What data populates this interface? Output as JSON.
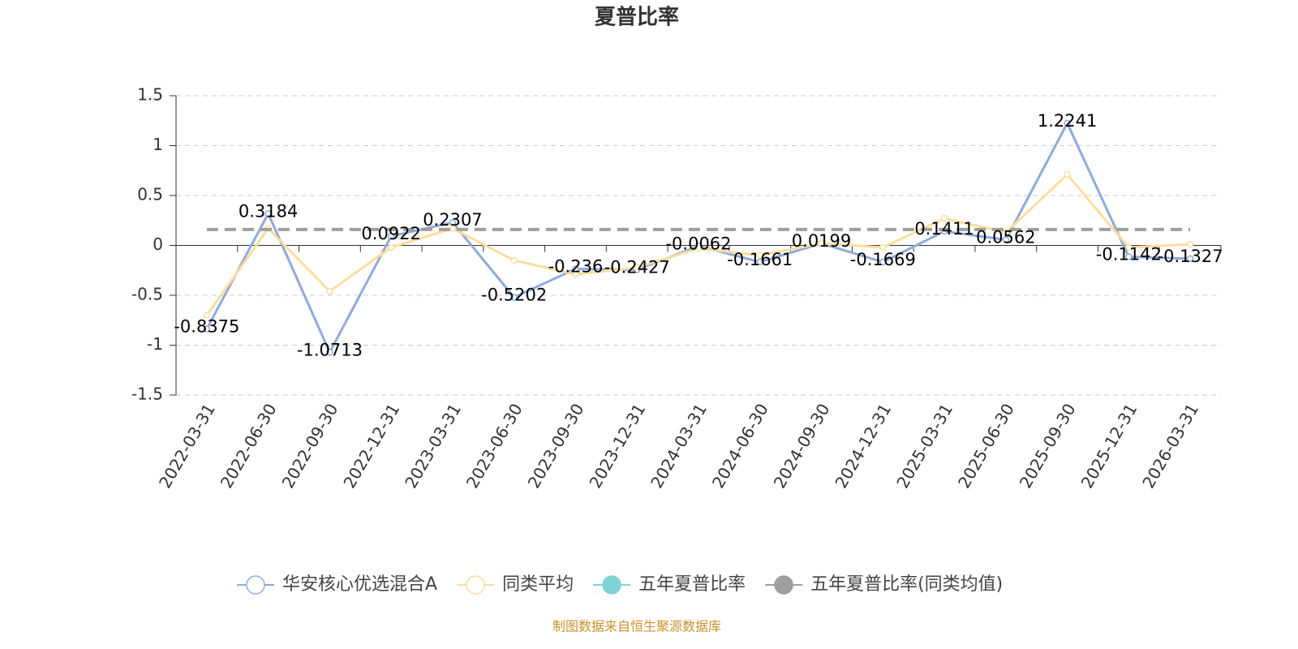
{
  "chart_data": {
    "type": "line",
    "title": "夏普比率",
    "source": "制图数据来自恒生聚源数据库",
    "categories": [
      "2022-03-31",
      "2022-06-30",
      "2022-09-30",
      "2022-12-31",
      "2023-03-31",
      "2023-06-30",
      "2023-09-30",
      "2023-12-31",
      "2024-03-31",
      "2024-06-30",
      "2024-09-30",
      "2024-12-31",
      "2025-03-31",
      "2025-06-30",
      "2025-09-30",
      "2025-12-31",
      "2026-03-31"
    ],
    "series": [
      {
        "name": "华安核心优选混合A",
        "color": "#8eaadb",
        "values": [
          -0.8375,
          0.3184,
          -1.0713,
          0.0922,
          0.2307,
          -0.5202,
          -0.236,
          -0.2427,
          -0.0062,
          -0.1661,
          0.0199,
          -0.1669,
          0.1411,
          0.0562,
          1.2241,
          -0.1142,
          -0.1327
        ],
        "data_labels": true
      },
      {
        "name": "同类平均",
        "color": "#fbdd9b",
        "values": [
          -0.7,
          0.17,
          -0.46,
          -0.02,
          0.17,
          -0.15,
          -0.29,
          -0.22,
          -0.03,
          -0.1,
          0.02,
          -0.02,
          0.27,
          0.13,
          0.71,
          -0.02,
          0.01
        ]
      },
      {
        "name": "五年夏普比率",
        "color": "#7fd3d6",
        "values": [
          null,
          null,
          null,
          null,
          null,
          null,
          null,
          null,
          null,
          null,
          null,
          null,
          null,
          null,
          null,
          null,
          null
        ]
      },
      {
        "name": "五年夏普比率(同类均值)",
        "color": "#9e9e9e",
        "dashed": true,
        "values": [
          0.16,
          0.16,
          0.16,
          0.16,
          0.16,
          0.16,
          0.16,
          0.16,
          0.16,
          0.16,
          0.16,
          0.16,
          0.16,
          0.16,
          0.16,
          0.16,
          0.16
        ]
      }
    ],
    "ylim": [
      -1.5,
      1.5
    ],
    "yticks": [
      -1.5,
      -1,
      -0.5,
      0,
      0.5,
      1,
      1.5
    ],
    "grid": true
  }
}
